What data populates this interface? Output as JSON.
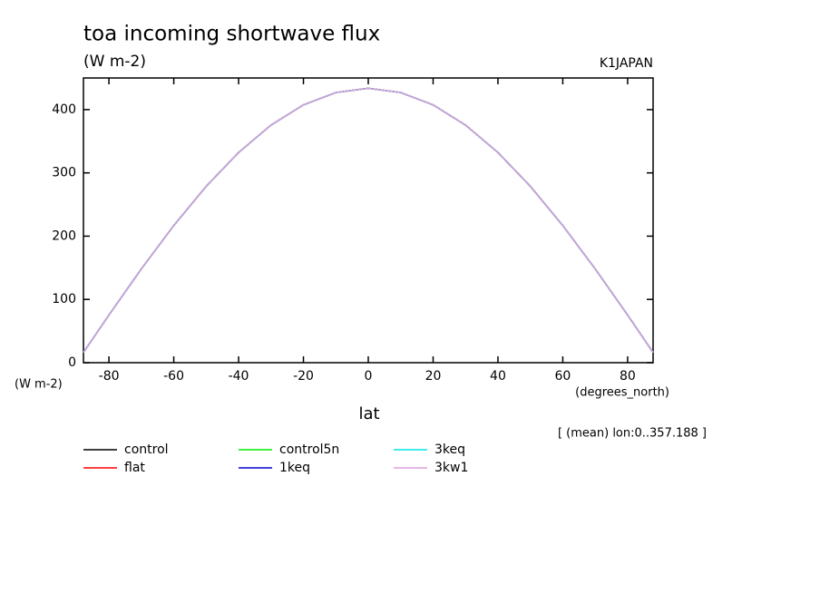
{
  "chart_data": {
    "type": "line",
    "title": "toa incoming shortwave flux",
    "subtitle": "(W m-2)",
    "source": "K1JAPAN",
    "y_unit": "(W m-2)",
    "x_unit": "(degrees_north)",
    "x_label": "lat",
    "note": "[ (mean) lon:0..357.188 ]",
    "x": [
      -87.86,
      -80,
      -70,
      -60,
      -50,
      -40,
      -30,
      -20,
      -10,
      0,
      10,
      20,
      30,
      40,
      50,
      60,
      70,
      80,
      87.86
    ],
    "series": [
      {
        "name": "control",
        "color": "#000000",
        "values": [
          16.2,
          75.3,
          148.3,
          216.8,
          278.7,
          332.2,
          375.5,
          407.5,
          427.0,
          433.6,
          427.0,
          407.5,
          375.5,
          332.2,
          278.7,
          216.8,
          148.3,
          75.3,
          16.2
        ]
      },
      {
        "name": "flat",
        "color": "#ff0000",
        "values": [
          16.2,
          75.3,
          148.3,
          216.8,
          278.7,
          332.2,
          375.5,
          407.5,
          427.0,
          433.6,
          427.0,
          407.5,
          375.5,
          332.2,
          278.7,
          216.8,
          148.3,
          75.3,
          16.2
        ]
      },
      {
        "name": "control5n",
        "color": "#00ee00",
        "values": [
          16.2,
          75.3,
          148.3,
          216.8,
          278.7,
          332.2,
          375.5,
          407.5,
          427.0,
          433.6,
          427.0,
          407.5,
          375.5,
          332.2,
          278.7,
          216.8,
          148.3,
          75.3,
          16.2
        ]
      },
      {
        "name": "1keq",
        "color": "#0000cc",
        "values": [
          16.2,
          75.3,
          148.3,
          216.8,
          278.7,
          332.2,
          375.5,
          407.5,
          427.0,
          433.6,
          427.0,
          407.5,
          375.5,
          332.2,
          278.7,
          216.8,
          148.3,
          75.3,
          16.2
        ]
      },
      {
        "name": "3keq",
        "color": "#00e5e5",
        "values": [
          16.2,
          75.3,
          148.3,
          216.8,
          278.7,
          332.2,
          375.5,
          407.5,
          427.0,
          433.6,
          427.0,
          407.5,
          375.5,
          332.2,
          278.7,
          216.8,
          148.3,
          75.3,
          16.2
        ]
      },
      {
        "name": "3kw1",
        "color": "#dda0dd",
        "values": [
          16.2,
          75.3,
          148.3,
          216.8,
          278.7,
          332.2,
          375.5,
          407.5,
          427.0,
          433.6,
          427.0,
          407.5,
          375.5,
          332.2,
          278.7,
          216.8,
          148.3,
          75.3,
          16.2
        ]
      }
    ],
    "xlim": [
      -87.86,
      87.86
    ],
    "xticks": [
      -80,
      -60,
      -40,
      -20,
      0,
      20,
      40,
      60,
      80
    ],
    "ylim": [
      0,
      450
    ],
    "yticks": [
      0,
      100,
      200,
      300,
      400
    ],
    "grid": false
  }
}
